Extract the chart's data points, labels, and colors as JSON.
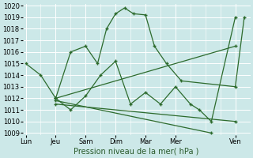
{
  "xlabel": "Pression niveau de la mer( hPa )",
  "background_color": "#cce8e8",
  "grid_color": "#ffffff",
  "line_color": "#2d6b2d",
  "ylim": [
    1009,
    1020
  ],
  "yticks": [
    1009,
    1010,
    1011,
    1012,
    1013,
    1014,
    1015,
    1016,
    1017,
    1018,
    1019,
    1020
  ],
  "xtick_labels": [
    "Lun",
    "Jeu",
    "Sam",
    "Dim",
    "Mar",
    "Mer",
    "Ven"
  ],
  "xtick_positions": [
    0,
    1,
    2,
    3,
    4,
    5,
    7
  ],
  "xlim": [
    -0.1,
    7.5
  ],
  "lines": [
    {
      "x": [
        0,
        0.5,
        1,
        1.5,
        2,
        2.4,
        2.7,
        3,
        3.3,
        3.6,
        4,
        4.3,
        4.7,
        5.2,
        7,
        7.3
      ],
      "y": [
        1015,
        1014,
        1012,
        1016,
        1016.5,
        1015,
        1018,
        1019.3,
        1019.8,
        1019.3,
        1019.2,
        1016.5,
        1015,
        1013.5,
        1013,
        1019
      ]
    },
    {
      "x": [
        1,
        1.5,
        2,
        2.5,
        3,
        3.5,
        4,
        4.5,
        5,
        5.5,
        5.8,
        6.2,
        7
      ],
      "y": [
        1012,
        1011,
        1012.2,
        1014,
        1015.2,
        1011.5,
        1012.5,
        1011.5,
        1013,
        1011.5,
        1011,
        1010,
        1019
      ]
    },
    {
      "x": [
        1,
        7
      ],
      "y": [
        1012,
        1016.5
      ]
    },
    {
      "x": [
        1,
        7
      ],
      "y": [
        1011.5,
        1010
      ]
    },
    {
      "x": [
        1,
        6.2
      ],
      "y": [
        1011.8,
        1009
      ]
    }
  ]
}
